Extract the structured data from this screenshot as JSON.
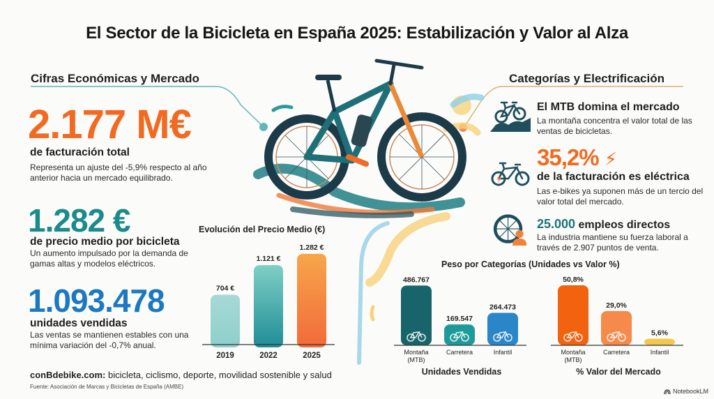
{
  "title": "El Sector de la Bicicleta en España 2025: Estabilización y Valor al Alza",
  "left_section": {
    "title": "Cifras Económicas y Mercado",
    "revenue": {
      "value": "2.177 M€",
      "label": "de facturación total",
      "description": "Representa un ajuste del -5,9% respecto al año anterior hacia un mercado equilibrado."
    },
    "avg_price": {
      "value": "1.282 €",
      "label": "de precio medio por bicicleta",
      "description": "Un aumento impulsado por la demanda de gamas altas y modelos eléctricos."
    },
    "units": {
      "value": "1.093.478",
      "label": "unidades vendidas",
      "description": "Las ventas se mantienen estables con una mínima variación del -0,7% anual."
    }
  },
  "right_section": {
    "title": "Categorías y Electrificación",
    "mtb": {
      "icon": "mountain-bike-icon",
      "label": "El MTB domina el mercado",
      "description": "La montaña concentra el valor total de las ventas de bicicletas."
    },
    "ebike": {
      "icon": "ebike-icon",
      "value": "35,2%",
      "label": "de la facturación es eléctrica",
      "description": "Las e-bikes ya suponen más de un tercio del valor total del mercado."
    },
    "jobs": {
      "icon": "wheel-worker-icon",
      "value": "25.000",
      "label": "empleos directos",
      "description": "La industria mantiene su fuerza laboral a través de 2.907 puntos de venta."
    }
  },
  "footer": {
    "site": "conBdebike.com:",
    "tagline": "bicicleta, ciclismo, deporte, movilidad sostenible y salud",
    "source": "Fuente: Asociación de Marcas y Bicicletas de España (AMBE)"
  },
  "branding": {
    "label": "NotebookLM"
  },
  "colors": {
    "orange": "#f26a21",
    "teal": "#1a8a8c",
    "blue": "#1c78c0",
    "dark_teal": "#17656b"
  },
  "chart_data": [
    {
      "type": "bar",
      "title": "Evolución del Precio Medio (€)",
      "categories": [
        "2019",
        "2022",
        "2025"
      ],
      "values": [
        704,
        1121,
        1282
      ],
      "data_labels": [
        "704 €",
        "1.121 €",
        "1.282 €"
      ],
      "colors": [
        [
          "#a7d9d6",
          "#8ecfcb"
        ],
        [
          "#7fcfc4",
          "#1f8d98"
        ],
        [
          "#f7a64a",
          "#f26a3a"
        ]
      ],
      "xlabel": "",
      "ylabel": "",
      "ylim": [
        0,
        1300
      ],
      "grid": false
    },
    {
      "type": "bar",
      "title": "Peso por Categorías (Unidades vs Valor %)",
      "xlabel": "Unidades Vendidas",
      "categories": [
        "Montaña (MTB)",
        "Carretera",
        "Infantil"
      ],
      "values": [
        486767,
        169547,
        264473
      ],
      "data_labels": [
        "486.767",
        "169.547",
        "264.473"
      ],
      "colors": [
        "#17656b",
        "#1f9a9a",
        "#2b86c8"
      ],
      "ylim": [
        0,
        500000
      ],
      "grid": false
    },
    {
      "type": "bar",
      "title": "Peso por Categorías (Unidades vs Valor %)",
      "xlabel": "% Valor del Mercado",
      "categories": [
        "Montaña (MTB)",
        "Carretera",
        "Infantil"
      ],
      "values": [
        50.8,
        29.0,
        5.6
      ],
      "data_labels": [
        "50,8%",
        "29,0%",
        "5,6%"
      ],
      "colors": [
        "#f2620f",
        "#f58a4a",
        "#f2c94c"
      ],
      "ylim": [
        0,
        52
      ],
      "grid": false
    }
  ]
}
